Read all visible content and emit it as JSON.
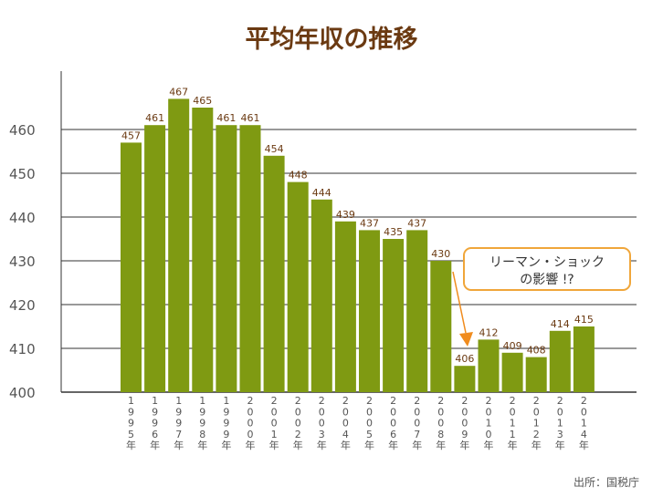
{
  "chart_data": {
    "type": "bar",
    "title": "平均年収の推移",
    "categories": [
      "1995年",
      "1996年",
      "1997年",
      "1998年",
      "1999年",
      "2000年",
      "2001年",
      "2002年",
      "2003年",
      "2004年",
      "2005年",
      "2006年",
      "2007年",
      "2008年",
      "2009年",
      "2010年",
      "2011年",
      "2012年",
      "2013年",
      "2014年"
    ],
    "values": [
      457,
      461,
      467,
      465,
      461,
      461,
      454,
      448,
      444,
      439,
      437,
      435,
      437,
      430,
      406,
      412,
      409,
      408,
      414,
      415
    ],
    "y_ticks": [
      "400",
      "410",
      "420",
      "430",
      "440",
      "450",
      "460"
    ],
    "ylim": [
      400,
      470
    ],
    "grid": true,
    "annotation": {
      "line1": "リーマン・ショック",
      "line2": "の影響 !?",
      "points_to": "2009年"
    },
    "source": "出所：国税庁"
  },
  "colors": {
    "bar": "#7f9a12",
    "title": "#6b3a12",
    "label": "#6b3a12",
    "axis_text": "#555555",
    "grid": "#333333",
    "callout_border": "#f0a63a",
    "arrow": "#f08c1e"
  }
}
